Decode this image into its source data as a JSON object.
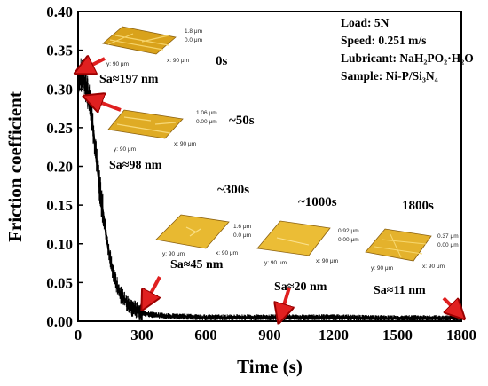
{
  "chart_data": {
    "type": "line",
    "xlabel": "Time (s)",
    "ylabel": "Friction coefficient",
    "xlim": [
      0,
      1800
    ],
    "ylim": [
      0,
      0.4
    ],
    "xticks": [
      "0",
      "300",
      "600",
      "900",
      "1200",
      "1500",
      "1800"
    ],
    "yticks": [
      "0.00",
      "0.05",
      "0.10",
      "0.15",
      "0.20",
      "0.25",
      "0.30",
      "0.35",
      "0.40"
    ],
    "grid": false,
    "series": [
      {
        "color": "#000000",
        "x": [
          0,
          10,
          20,
          30,
          40,
          50,
          60,
          70,
          80,
          90,
          100,
          110,
          120,
          130,
          140,
          150,
          160,
          180,
          200,
          220,
          240,
          260,
          280,
          300,
          330,
          360,
          400,
          450,
          500,
          600,
          700,
          800,
          900,
          1000,
          1200,
          1400,
          1600,
          1800
        ],
        "y": [
          0.3,
          0.32,
          0.315,
          0.31,
          0.3,
          0.29,
          0.27,
          0.25,
          0.225,
          0.2,
          0.175,
          0.155,
          0.135,
          0.115,
          0.097,
          0.082,
          0.068,
          0.048,
          0.034,
          0.026,
          0.02,
          0.016,
          0.013,
          0.011,
          0.009,
          0.008,
          0.007,
          0.006,
          0.006,
          0.005,
          0.005,
          0.005,
          0.005,
          0.005,
          0.005,
          0.004,
          0.004,
          0.004
        ]
      }
    ],
    "annotations": {
      "conditions": [
        "Load: 5N",
        "Speed: 0.251 m/s",
        "Lubricant: NaH₂PO₂·H₂O",
        "Sample: Ni-P/Si₃N₄"
      ],
      "afm_insets": [
        {
          "time_label": "0s",
          "roughness": "Sa≈197 nm",
          "z_max": "1.8 μm",
          "z_min": "0.0 μm",
          "x_range": "x: 90 μm",
          "y_range": "y: 90 μm",
          "color": "#d9a21b"
        },
        {
          "time_label": "~50s",
          "roughness": "Sa≈98 nm",
          "z_max": "1.06 μm",
          "z_min": "0.00 μm",
          "x_range": "x: 90 μm",
          "y_range": "y: 90 μm",
          "color": "#dfab24"
        },
        {
          "time_label": "~300s",
          "roughness": "Sa≈45 nm",
          "z_max": "1.6 μm",
          "z_min": "0.0 μm",
          "x_range": "x: 90 μm",
          "y_range": "y: 90 μm",
          "color": "#e8b931"
        },
        {
          "time_label": "~1000s",
          "roughness": "Sa≈20 nm",
          "z_max": "0.92 μm",
          "z_min": "0.00 μm",
          "x_range": "x: 90 μm",
          "y_range": "y: 90 μm",
          "color": "#ebbd36"
        },
        {
          "time_label": "1800s",
          "roughness": "Sa≈11 nm",
          "z_max": "0.37 μm",
          "z_min": "0.00 μm",
          "x_range": "x: 90 μm",
          "y_range": "y: 90 μm",
          "color": "#e4b22c"
        }
      ]
    }
  }
}
